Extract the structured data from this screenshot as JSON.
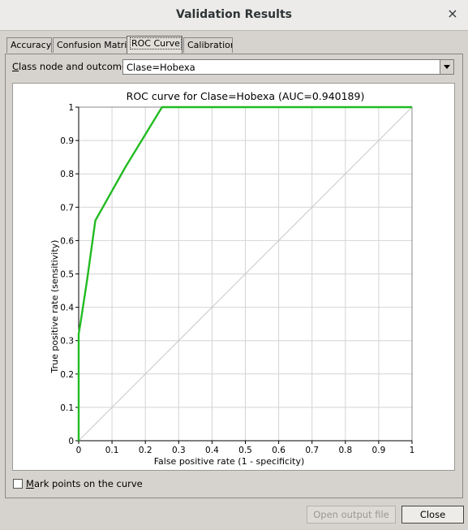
{
  "window": {
    "title": "Validation Results",
    "close_glyph": "×"
  },
  "tabs": [
    {
      "label": "Accuracy",
      "active": false
    },
    {
      "label": "Confusion Matrix",
      "active": false
    },
    {
      "label": "ROC Curve",
      "active": true
    },
    {
      "label": "Calibration",
      "active": false
    }
  ],
  "class_node": {
    "label_mnemonic": "C",
    "label_rest": "lass node and outcome",
    "selected": "Clase=Hobexa"
  },
  "chart_data": {
    "type": "line",
    "title": "ROC curve for Clase=Hobexa (AUC=0.940189)",
    "xlabel": "False positive rate (1 - specificity)",
    "ylabel": "True positive rate (sensitivity)",
    "xlim": [
      0,
      1
    ],
    "ylim": [
      0,
      1
    ],
    "xticks": [
      "0",
      "0.1",
      "0.2",
      "0.3",
      "0.4",
      "0.5",
      "0.6",
      "0.7",
      "0.8",
      "0.9",
      "1"
    ],
    "yticks": [
      "0",
      "0.1",
      "0.2",
      "0.3",
      "0.4",
      "0.5",
      "0.6",
      "0.7",
      "0.8",
      "0.9",
      "1"
    ],
    "grid": true,
    "series": [
      {
        "color": "#22bb22",
        "x": [
          0,
          0,
          0.005,
          0.025,
          0.05,
          0.14,
          0.25,
          1
        ],
        "y": [
          0,
          0.32,
          0.35,
          0.48,
          0.66,
          0.82,
          1,
          1
        ]
      }
    ],
    "diagonal_color": "#c8c8c8"
  },
  "mark_points": {
    "label_mnemonic": "M",
    "label_rest": "ark points on the curve",
    "checked": false
  },
  "buttons": {
    "open_output_file": "Open output file",
    "close": "Close"
  }
}
